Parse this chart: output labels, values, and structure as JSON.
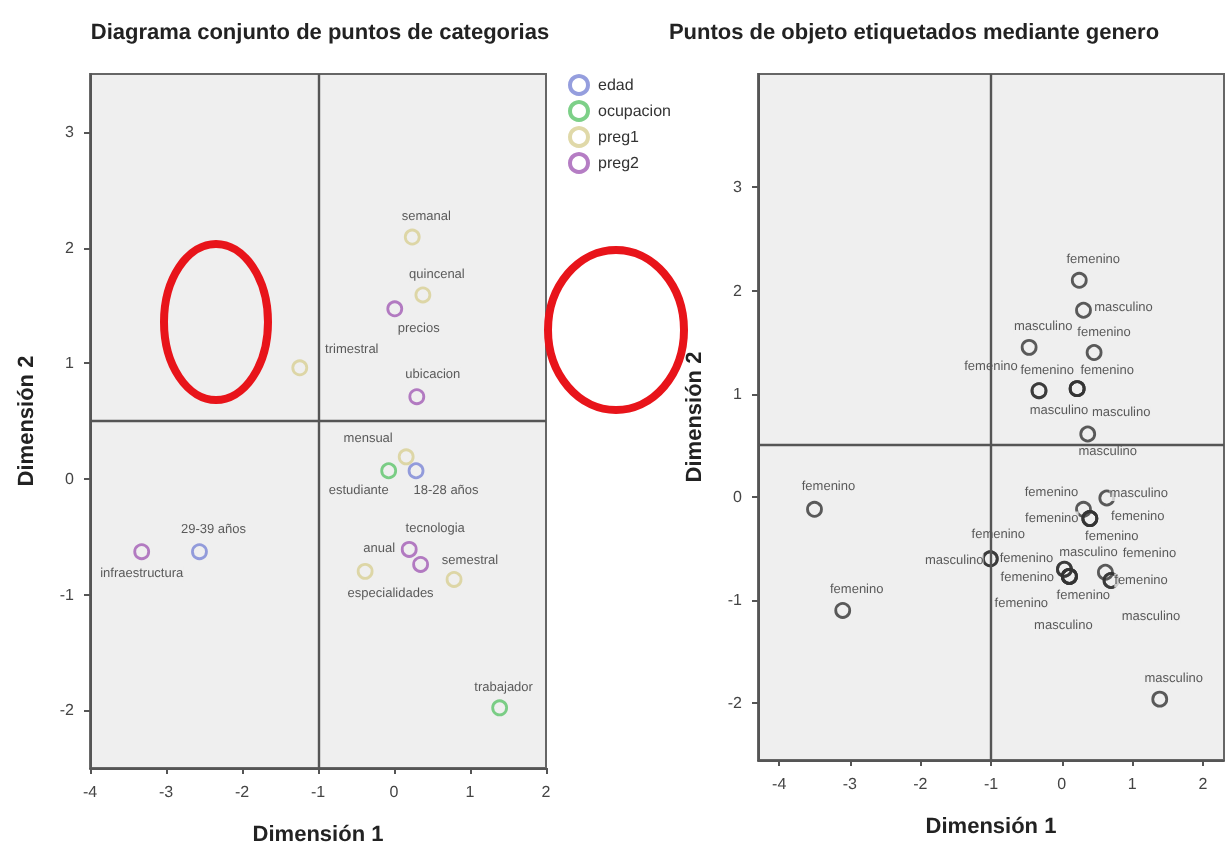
{
  "chart_data": [
    {
      "type": "scatter",
      "title": "Diagrama conjunto de puntos de categorias",
      "xlabel": "Dimensión 1",
      "ylabel": "Dimensión 2",
      "xlim": [
        -4,
        2
      ],
      "ylim": [
        -2.5,
        3.5
      ],
      "xticks": [
        -4,
        -3,
        -2,
        -1,
        0,
        1,
        2
      ],
      "yticks": [
        -2,
        -1,
        0,
        1,
        2,
        3
      ],
      "grid": false,
      "legend": "top right",
      "marker": "circle",
      "ref_lines": [
        {
          "axis": "x",
          "value": -1
        },
        {
          "axis": "y",
          "value": 0.5
        }
      ],
      "series": [
        {
          "name": "edad",
          "color": "#7b86d6",
          "x": [
            0.29,
            -2.56
          ],
          "values": [
            0.07,
            -0.63
          ],
          "value_labels": [
            "18-28 años",
            "29-39 años"
          ]
        },
        {
          "name": "ocupacion",
          "color": "#5cc46a",
          "x": [
            -0.07,
            1.39
          ],
          "values": [
            0.07,
            -1.98
          ],
          "value_labels": [
            "estudiante",
            "trabajador"
          ]
        },
        {
          "name": "preg1",
          "color": "#d8cf94",
          "x": [
            0.24,
            0.38,
            -1.24,
            0.16,
            -0.38,
            0.79
          ],
          "values": [
            2.09,
            1.59,
            0.96,
            0.19,
            -0.8,
            -0.87
          ],
          "value_labels": [
            "semanal",
            "quincenal",
            "trimestral",
            "mensual",
            "anual",
            "semestral"
          ]
        },
        {
          "name": "preg2",
          "color": "#a35db5",
          "x": [
            0.01,
            0.3,
            -3.32,
            0.2,
            0.35
          ],
          "values": [
            1.47,
            0.71,
            -0.63,
            -0.61,
            -0.74
          ],
          "value_labels": [
            "precios",
            "ubicacion",
            "infraestructura",
            "tecnologia",
            "especialidades"
          ]
        }
      ]
    },
    {
      "type": "scatter",
      "title": "Puntos de objeto etiquetados mediante genero",
      "xlabel": "Dimensión 1",
      "ylabel": "Dimensión 2",
      "xlim": [
        -4.3,
        2.3
      ],
      "ylim": [
        -2.55,
        4.1
      ],
      "xticks": [
        -4,
        -3,
        -2,
        -1,
        0,
        1,
        2
      ],
      "yticks": [
        -2,
        -1,
        0,
        1,
        2,
        3
      ],
      "grid": false,
      "legend": false,
      "marker": "circle",
      "ref_lines": [
        {
          "axis": "x",
          "value": -1
        },
        {
          "axis": "y",
          "value": 0.5
        }
      ],
      "series": [
        {
          "color": "#333333",
          "x": [
            0.25,
            0.31,
            -0.46,
            0.46,
            -0.32,
            -0.32,
            0.22,
            0.22,
            0.22,
            0.37,
            -3.5,
            -3.1,
            0.31,
            0.64,
            0.4,
            0.4,
            0.4,
            -1.01,
            -1.01,
            0.04,
            0.04,
            0.11,
            0.11,
            0.11,
            0.11,
            0.62,
            0.7,
            0.7,
            1.39
          ],
          "values": [
            2.1,
            1.81,
            1.45,
            1.4,
            1.03,
            1.03,
            1.05,
            1.05,
            1.05,
            0.61,
            -0.12,
            -1.1,
            -0.12,
            -0.01,
            -0.21,
            -0.21,
            -0.21,
            -0.6,
            -0.6,
            -0.7,
            -0.7,
            -0.77,
            -0.77,
            -0.77,
            -0.77,
            -0.73,
            -0.81,
            -0.81,
            -1.96
          ],
          "value_labels": [
            "femenino",
            "masculino",
            "masculino",
            "femenino",
            "femenino",
            "masculino",
            "femenino",
            "femenino",
            "masculino",
            "masculino",
            "femenino",
            "femenino",
            "femenino",
            "masculino",
            "femenino",
            "femenino",
            "femenino",
            "masculino",
            "femenino",
            "femenino",
            "masculino",
            "femenino",
            "femenino",
            "femenino",
            "masculino",
            "femenino",
            "femenino",
            "masculino",
            "masculino"
          ]
        }
      ]
    }
  ]
}
